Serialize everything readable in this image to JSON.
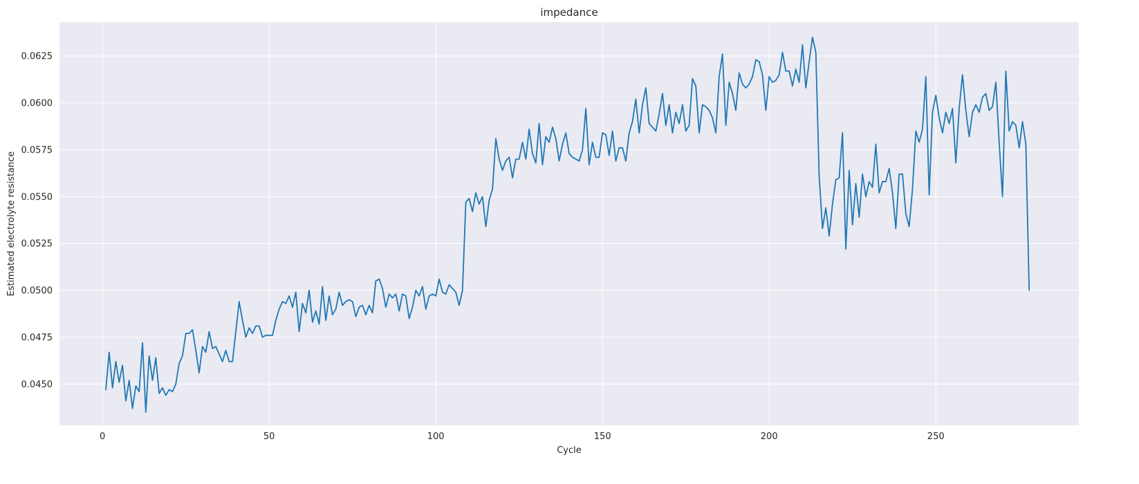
{
  "chart_data": {
    "type": "line",
    "title": "impedance",
    "xlabel": "Cycle",
    "ylabel": "Estimated electrolyte resistance",
    "xlim": [
      -12.9,
      292.9
    ],
    "ylim": [
      0.0428,
      0.06431
    ],
    "x_ticks": [
      0,
      50,
      100,
      150,
      200,
      250
    ],
    "y_ticks": [
      0.045,
      0.0475,
      0.05,
      0.0525,
      0.055,
      0.0575,
      0.06,
      0.0625
    ],
    "y_tick_labels": [
      "0.0450",
      "0.0475",
      "0.0500",
      "0.0525",
      "0.0550",
      "0.0575",
      "0.0600",
      "0.0625"
    ],
    "grid": true,
    "background": "#eaeaf2",
    "series": [
      {
        "color": "#1f77b4",
        "x_start": 1,
        "x_step": 1,
        "values": [
          0.0447,
          0.0467,
          0.0448,
          0.0462,
          0.0451,
          0.046,
          0.0441,
          0.0452,
          0.0437,
          0.0449,
          0.0446,
          0.0472,
          0.0435,
          0.0465,
          0.0452,
          0.0464,
          0.0445,
          0.0448,
          0.0444,
          0.0447,
          0.0446,
          0.045,
          0.0461,
          0.0465,
          0.0477,
          0.0477,
          0.0479,
          0.0468,
          0.0456,
          0.047,
          0.0467,
          0.0478,
          0.0469,
          0.047,
          0.0466,
          0.0462,
          0.0468,
          0.0462,
          0.0462,
          0.0478,
          0.0494,
          0.0484,
          0.0475,
          0.048,
          0.0477,
          0.0481,
          0.0481,
          0.0475,
          0.0476,
          0.0476,
          0.0476,
          0.0484,
          0.049,
          0.0494,
          0.0493,
          0.0497,
          0.0491,
          0.0499,
          0.0478,
          0.0493,
          0.0488,
          0.05,
          0.0483,
          0.0489,
          0.0482,
          0.0502,
          0.0484,
          0.0497,
          0.0487,
          0.049,
          0.0499,
          0.0492,
          0.0494,
          0.0495,
          0.0494,
          0.0486,
          0.0491,
          0.0492,
          0.0487,
          0.0492,
          0.0488,
          0.0505,
          0.0506,
          0.0501,
          0.0491,
          0.0498,
          0.0496,
          0.0498,
          0.0489,
          0.0498,
          0.0497,
          0.0485,
          0.0491,
          0.05,
          0.0497,
          0.0502,
          0.049,
          0.0497,
          0.0498,
          0.0497,
          0.0506,
          0.0499,
          0.0498,
          0.0503,
          0.0501,
          0.0499,
          0.0492,
          0.05,
          0.0547,
          0.0549,
          0.0542,
          0.0552,
          0.0546,
          0.055,
          0.0534,
          0.0548,
          0.0554,
          0.0581,
          0.057,
          0.0564,
          0.0569,
          0.0571,
          0.056,
          0.057,
          0.057,
          0.0579,
          0.057,
          0.0586,
          0.0573,
          0.0568,
          0.0589,
          0.0567,
          0.0582,
          0.0579,
          0.0587,
          0.0581,
          0.0569,
          0.0578,
          0.0584,
          0.0573,
          0.0571,
          0.057,
          0.0569,
          0.0575,
          0.0597,
          0.0567,
          0.0579,
          0.0571,
          0.0571,
          0.0584,
          0.0583,
          0.0572,
          0.0585,
          0.0569,
          0.0576,
          0.0576,
          0.0569,
          0.0584,
          0.059,
          0.0602,
          0.0584,
          0.0599,
          0.0608,
          0.0589,
          0.0587,
          0.0585,
          0.0594,
          0.0605,
          0.0588,
          0.0599,
          0.0584,
          0.0595,
          0.0589,
          0.0599,
          0.0585,
          0.0588,
          0.0613,
          0.0609,
          0.0584,
          0.0599,
          0.0598,
          0.0596,
          0.0592,
          0.0584,
          0.0614,
          0.0626,
          0.0588,
          0.0611,
          0.0605,
          0.0596,
          0.0616,
          0.061,
          0.0608,
          0.061,
          0.0614,
          0.0623,
          0.0622,
          0.0615,
          0.0596,
          0.0614,
          0.0611,
          0.0612,
          0.0615,
          0.0627,
          0.0617,
          0.0617,
          0.0609,
          0.0618,
          0.0611,
          0.0631,
          0.0608,
          0.0622,
          0.0635,
          0.0627,
          0.0561,
          0.0533,
          0.0544,
          0.0529,
          0.0546,
          0.0559,
          0.056,
          0.0584,
          0.0522,
          0.0564,
          0.0535,
          0.0557,
          0.0539,
          0.0562,
          0.055,
          0.0558,
          0.0555,
          0.0578,
          0.0552,
          0.0558,
          0.0558,
          0.0565,
          0.0552,
          0.0533,
          0.0562,
          0.0562,
          0.0541,
          0.0534,
          0.0554,
          0.0585,
          0.0579,
          0.0586,
          0.0614,
          0.0551,
          0.0595,
          0.0604,
          0.0592,
          0.0584,
          0.0595,
          0.0589,
          0.0597,
          0.0568,
          0.0597,
          0.0615,
          0.0596,
          0.0582,
          0.0595,
          0.0599,
          0.0595,
          0.0603,
          0.0605,
          0.0596,
          0.0598,
          0.0611,
          0.0579,
          0.055,
          0.0617,
          0.0585,
          0.059,
          0.0588,
          0.0576,
          0.059,
          0.0578,
          0.05
        ]
      }
    ]
  }
}
